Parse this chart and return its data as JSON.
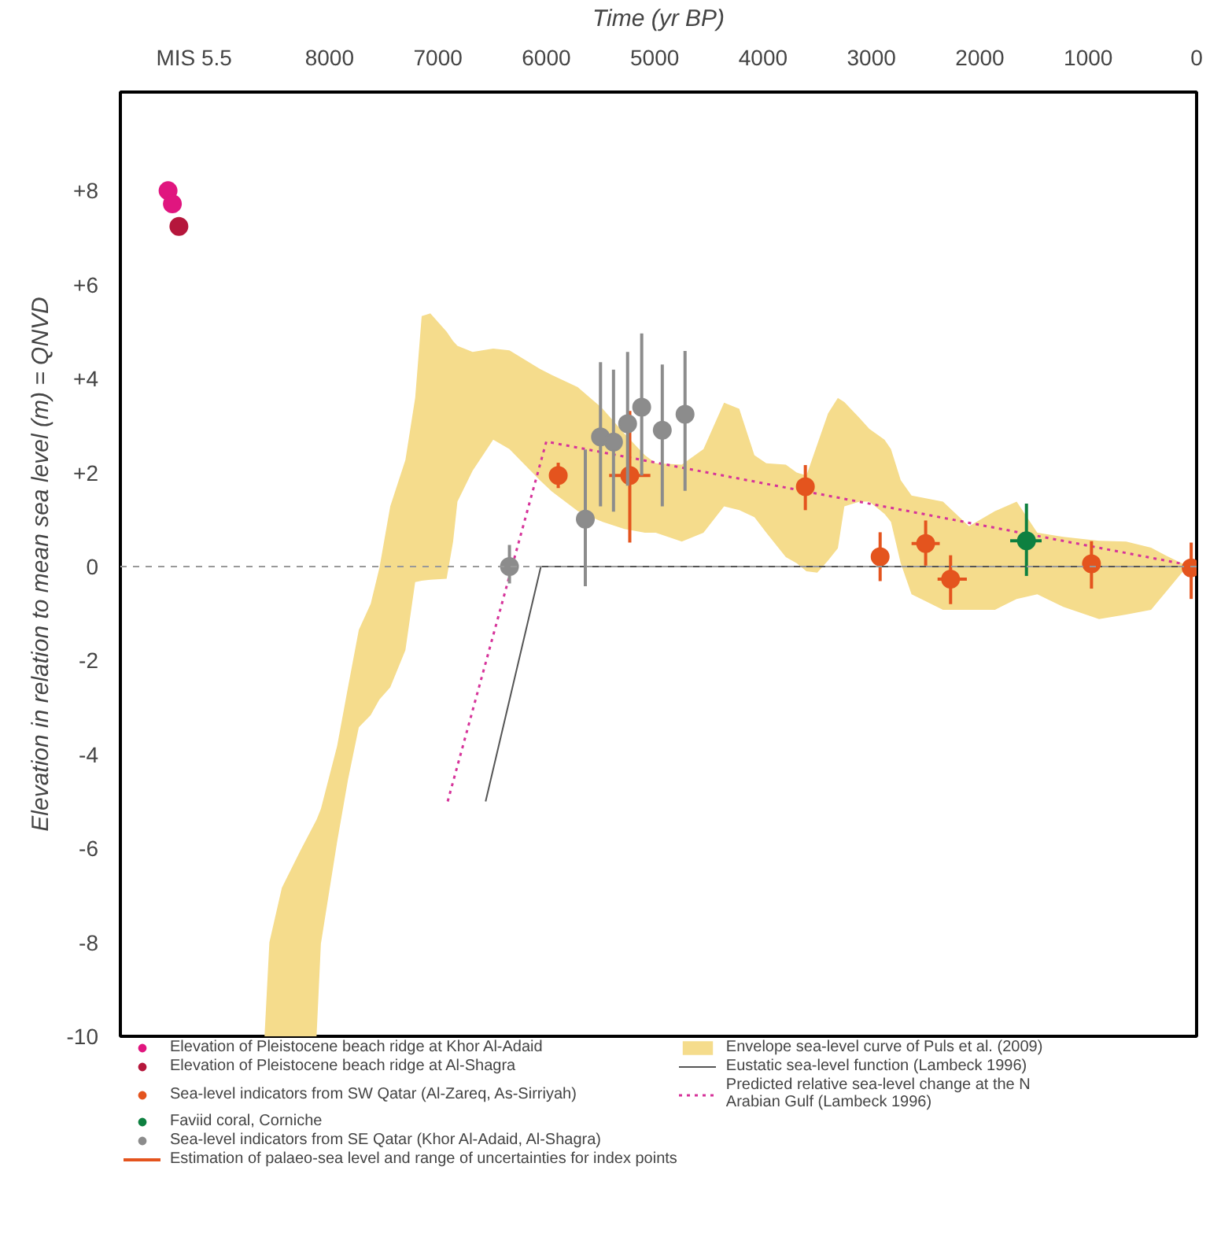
{
  "chart_data": {
    "type": "scatter",
    "xlabel": "Time (yr BP)",
    "ylabel": "Elevation in relation to mean sea level (m) = QNVD",
    "xlim": [
      9930,
      0
    ],
    "ylim": [
      -10,
      10.1
    ],
    "xticks": [
      {
        "value": 9250,
        "label": "MIS 5.5"
      },
      8000,
      7000,
      6000,
      5000,
      4000,
      3000,
      2000,
      1000,
      0
    ],
    "yticks": [
      {
        "value": 8,
        "label": "+8"
      },
      {
        "value": 6,
        "label": "+6"
      },
      {
        "value": 4,
        "label": "+4"
      },
      {
        "value": 2,
        "label": "+2"
      },
      0,
      -2,
      -4,
      -6,
      -8,
      -10
    ],
    "grid": false,
    "legend": "bottom",
    "ref_lines": [
      {
        "axis": "y",
        "value": 0,
        "color": "#999999",
        "line_style": "dashed"
      }
    ],
    "annotations": [
      "Estimation of palaeo-sea level and range of uncertainties for index points"
    ],
    "series": [
      {
        "type": "area",
        "name": "Envelope sea-level curve of Puls et al. (2009)",
        "color": "#f5dc8c",
        "x": [
          8600,
          8555,
          8440,
          8270,
          8120,
          8080,
          7930,
          7830,
          7730,
          7620,
          7540,
          7440,
          7300,
          7210,
          7150,
          7070,
          6920,
          6860,
          6820,
          6680,
          6490,
          6340,
          6060,
          5950,
          5710,
          5480,
          5280,
          5090,
          4990,
          4750,
          4550,
          4360,
          4220,
          4080,
          3970,
          3790,
          3690,
          3600,
          3500,
          3400,
          3310,
          3250,
          3110,
          3020,
          2880,
          2820,
          2730,
          2630,
          2340,
          2100,
          1860,
          1660,
          1470,
          1230,
          900,
          650,
          420,
          280,
          100,
          100,
          280,
          420,
          650,
          900,
          1230,
          1470,
          1660,
          1860,
          2100,
          2340,
          2630,
          2730,
          2820,
          2880,
          3020,
          3110,
          3250,
          3310,
          3400,
          3500,
          3600,
          3690,
          3790,
          3970,
          4080,
          4220,
          4360,
          4550,
          4750,
          4990,
          5090,
          5280,
          5480,
          5710,
          5950,
          6060,
          6340,
          6490,
          6680,
          6820,
          6860,
          6920,
          7070,
          7150,
          7210,
          7300,
          7440,
          7540,
          7620,
          7730,
          7830,
          7930,
          8080,
          8120
        ],
        "values": [
          -10,
          -8.0,
          -6.84,
          -6.05,
          -5.39,
          -5.16,
          -3.82,
          -2.57,
          -1.35,
          -0.79,
          -0.03,
          1.28,
          2.27,
          3.59,
          5.33,
          5.39,
          5.0,
          4.8,
          4.7,
          4.57,
          4.64,
          4.6,
          4.21,
          4.08,
          3.82,
          3.36,
          2.83,
          2.37,
          2.2,
          2.17,
          2.5,
          3.49,
          3.36,
          2.37,
          2.2,
          2.17,
          2.0,
          1.94,
          2.6,
          3.26,
          3.59,
          3.5,
          3.16,
          2.93,
          2.7,
          2.5,
          1.84,
          1.51,
          1.38,
          0.86,
          1.18,
          1.38,
          0.72,
          0.63,
          0.55,
          0.53,
          0.4,
          0.23,
          0.03,
          -0.03,
          -0.53,
          -0.92,
          -1.02,
          -1.12,
          -0.86,
          -0.59,
          -0.69,
          -0.92,
          -0.92,
          -0.92,
          -0.59,
          0.07,
          0.95,
          1.12,
          1.38,
          1.38,
          1.28,
          0.39,
          0.13,
          -0.13,
          -0.1,
          0.07,
          0.2,
          0.72,
          1.05,
          1.2,
          1.28,
          0.72,
          0.53,
          0.72,
          0.72,
          0.8,
          0.95,
          1.18,
          1.6,
          1.84,
          2.5,
          2.7,
          2.04,
          1.38,
          0.53,
          -0.26,
          -0.28,
          -0.3,
          -0.33,
          -1.78,
          -2.57,
          -2.83,
          -3.16,
          -3.42,
          -4.54,
          -5.86,
          -8.03,
          -10
        ]
      },
      {
        "type": "line",
        "name": "Eustatic sea-level function (Lambeck 1996)",
        "color": "#555555",
        "line_style": "solid",
        "x": [
          6560,
          6050,
          0
        ],
        "values": [
          -5,
          0,
          0
        ]
      },
      {
        "type": "line",
        "name": "Predicted relative sea-level change at the N Arabian Gulf (Lambeck 1996)",
        "color": "#d6339a",
        "line_style": "dotted",
        "x": [
          6910,
          6000,
          0
        ],
        "values": [
          -5,
          2.66,
          0
        ]
      },
      {
        "name": "Elevation of Pleistocene beach ridge at Khor Al-Adaid",
        "marker": "circle",
        "color": "#e0167f",
        "x": [
          9490,
          9450
        ],
        "values": [
          8.0,
          7.72
        ]
      },
      {
        "name": "Elevation of Pleistocene beach ridge at Al-Shagra",
        "marker": "circle",
        "color": "#b5173c",
        "x": [
          9390
        ],
        "values": [
          7.24
        ]
      },
      {
        "name": "Sea-level indicators from SW Qatar (Al-Zareq, As-Sirriyah)",
        "marker": "circle",
        "color": "#e4541e",
        "x": [
          5890,
          5230,
          3610,
          2920,
          2500,
          2270,
          970,
          50
        ],
        "values": [
          1.94,
          1.94,
          1.7,
          0.21,
          0.49,
          -0.27,
          0.06,
          -0.03
        ],
        "errors": [
          [
            1.67,
            2.21
          ],
          [
            0.51,
            3.31
          ],
          [
            1.2,
            2.16
          ],
          [
            -0.31,
            0.73
          ],
          [
            0.02,
            0.98
          ],
          [
            -0.8,
            0.24
          ],
          [
            -0.47,
            0.54
          ],
          [
            -0.69,
            0.51
          ]
        ],
        "xerrors": [
          null,
          [
            5040,
            5420
          ],
          null,
          null,
          [
            2370,
            2630
          ],
          [
            2120,
            2390
          ],
          null,
          null
        ]
      },
      {
        "name": "Faviid coral, Corniche",
        "marker": "circle",
        "color": "#0e8040",
        "x": [
          1570
        ],
        "values": [
          0.55
        ],
        "errors": [
          [
            -0.2,
            1.34
          ]
        ],
        "xerrors": [
          [
            1430,
            1720
          ]
        ]
      },
      {
        "name": "Sea-level indicators from SE Qatar (Khor Al-Adaid, Al-Shagra)",
        "marker": "circle",
        "color": "#8c8c8c",
        "x": [
          6340,
          5640,
          5500,
          5380,
          5250,
          5120,
          4930,
          4720
        ],
        "values": [
          0.0,
          1.01,
          2.76,
          2.65,
          3.04,
          3.39,
          2.9,
          3.24
        ],
        "errors": [
          [
            -0.36,
            0.46
          ],
          [
            -0.42,
            2.49
          ],
          [
            1.28,
            4.35
          ],
          [
            1.17,
            4.19
          ],
          [
            1.72,
            4.57
          ],
          [
            1.94,
            4.96
          ],
          [
            1.28,
            4.3
          ],
          [
            1.61,
            4.59
          ]
        ]
      }
    ]
  }
}
